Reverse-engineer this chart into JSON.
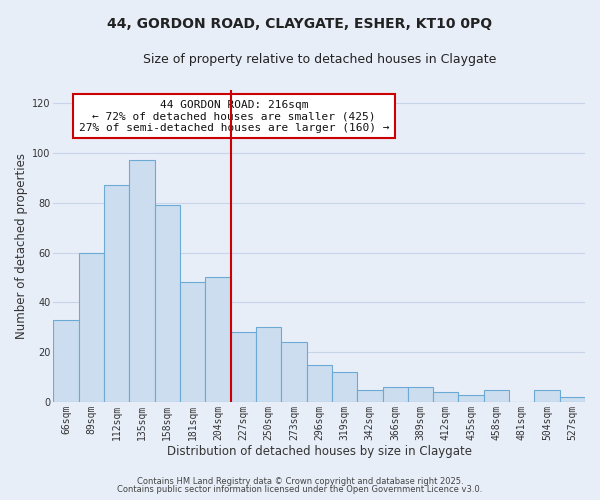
{
  "title_line1": "44, GORDON ROAD, CLAYGATE, ESHER, KT10 0PQ",
  "title_line2": "Size of property relative to detached houses in Claygate",
  "xlabel": "Distribution of detached houses by size in Claygate",
  "ylabel": "Number of detached properties",
  "bar_labels": [
    "66sqm",
    "89sqm",
    "112sqm",
    "135sqm",
    "158sqm",
    "181sqm",
    "204sqm",
    "227sqm",
    "250sqm",
    "273sqm",
    "296sqm",
    "319sqm",
    "342sqm",
    "366sqm",
    "389sqm",
    "412sqm",
    "435sqm",
    "458sqm",
    "481sqm",
    "504sqm",
    "527sqm"
  ],
  "bar_values": [
    33,
    60,
    87,
    97,
    79,
    48,
    50,
    28,
    30,
    24,
    15,
    12,
    5,
    6,
    6,
    4,
    3,
    5,
    0,
    5,
    2
  ],
  "bar_color": "#ccddf0",
  "bar_edge_color": "#6aaad4",
  "vline_x": 6.5,
  "vline_color": "#cc0000",
  "annotation_title": "44 GORDON ROAD: 216sqm",
  "annotation_line1": "← 72% of detached houses are smaller (425)",
  "annotation_line2": "27% of semi-detached houses are larger (160) →",
  "annotation_box_color": "#ffffff",
  "annotation_box_edge_color": "#cc0000",
  "ylim": [
    0,
    125
  ],
  "yticks": [
    0,
    20,
    40,
    60,
    80,
    100,
    120
  ],
  "footnote_line1": "Contains HM Land Registry data © Crown copyright and database right 2025.",
  "footnote_line2": "Contains public sector information licensed under the Open Government Licence v3.0.",
  "background_color": "#e8eef8",
  "grid_color": "#c8d4e8",
  "title_fontsize": 10,
  "subtitle_fontsize": 9,
  "axis_label_fontsize": 8.5,
  "tick_fontsize": 7,
  "annotation_fontsize": 8,
  "footnote_fontsize": 6
}
